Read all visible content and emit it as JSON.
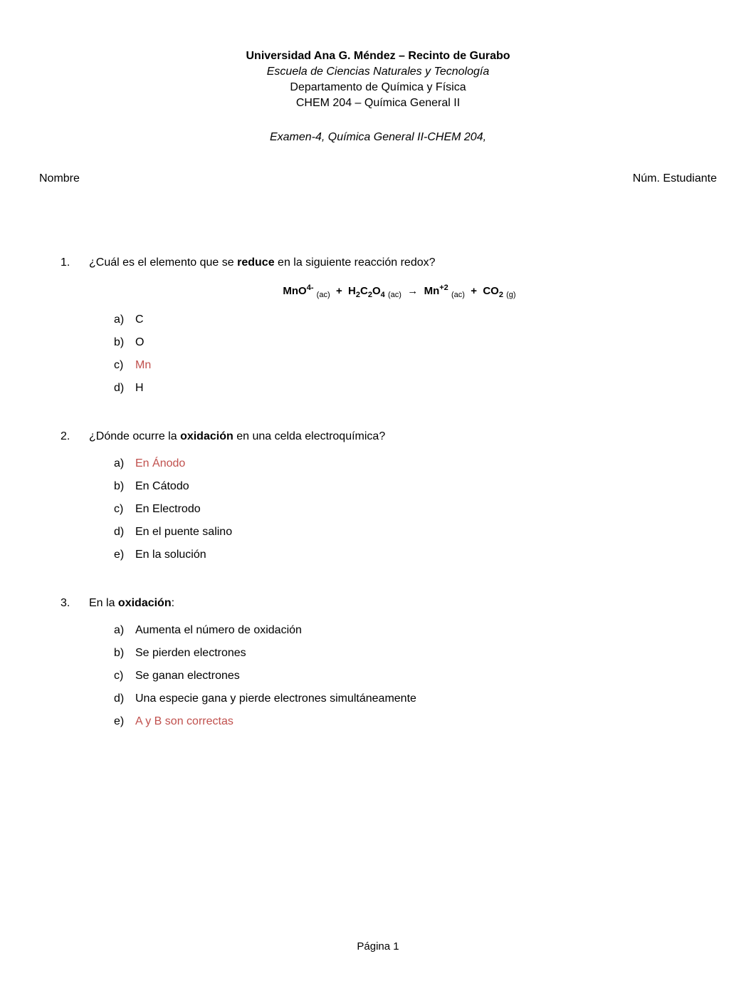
{
  "header": {
    "university": "Universidad Ana G. Méndez – Recinto de Gurabo",
    "school": "Escuela de Ciencias Naturales y Tecnología",
    "department": "Departamento de Química y Física",
    "course": "CHEM 204 – Química General II",
    "exam": "Examen-4, Química General II-CHEM 204,"
  },
  "student": {
    "name_label": "Nombre",
    "id_label": "Núm. Estudiante"
  },
  "questions": {
    "q1": {
      "number": "1.",
      "prefix": "¿Cuál es el elemento que se ",
      "bold": "reduce",
      "suffix": " en la siguiente reacción redox?",
      "options": {
        "a": {
          "letter": "a)",
          "text": "C",
          "is_answer": false
        },
        "b": {
          "letter": "b)",
          "text": "O",
          "is_answer": false
        },
        "c": {
          "letter": "c)",
          "text": "Mn",
          "is_answer": true
        },
        "d": {
          "letter": "d)",
          "text": "H",
          "is_answer": false
        }
      }
    },
    "q2": {
      "number": "2.",
      "prefix": "¿Dónde ocurre la ",
      "bold": "oxidación",
      "suffix": " en una celda electroquímica?",
      "options": {
        "a": {
          "letter": "a)",
          "text": "En Ánodo",
          "is_answer": true
        },
        "b": {
          "letter": "b)",
          "text": "En Cátodo",
          "is_answer": false
        },
        "c": {
          "letter": "c)",
          "text": "En Electrodo",
          "is_answer": false
        },
        "d": {
          "letter": "d)",
          "text": "En el puente salino",
          "is_answer": false
        },
        "e": {
          "letter": "e)",
          "text": "En la solución",
          "is_answer": false
        }
      }
    },
    "q3": {
      "number": "3.",
      "prefix": "En la ",
      "bold": "oxidación",
      "suffix": ":",
      "options": {
        "a": {
          "letter": "a)",
          "text": "Aumenta el número de oxidación",
          "is_answer": false
        },
        "b": {
          "letter": "b)",
          "text": "Se pierden electrones",
          "is_answer": false
        },
        "c": {
          "letter": "c)",
          "text": "Se ganan electrones",
          "is_answer": false
        },
        "d": {
          "letter": "d)",
          "text": "Una especie gana y pierde electrones simultáneamente",
          "is_answer": false
        },
        "e": {
          "letter": "e)",
          "text": "A y B son correctas",
          "is_answer": true
        }
      }
    }
  },
  "footer": {
    "page": "Página 1"
  },
  "colors": {
    "text": "#000000",
    "answer": "#c0504d",
    "background": "#ffffff"
  },
  "typography": {
    "base_font_size": 16,
    "header_bold_size": 16,
    "equation_size": 15,
    "footer_size": 15
  }
}
